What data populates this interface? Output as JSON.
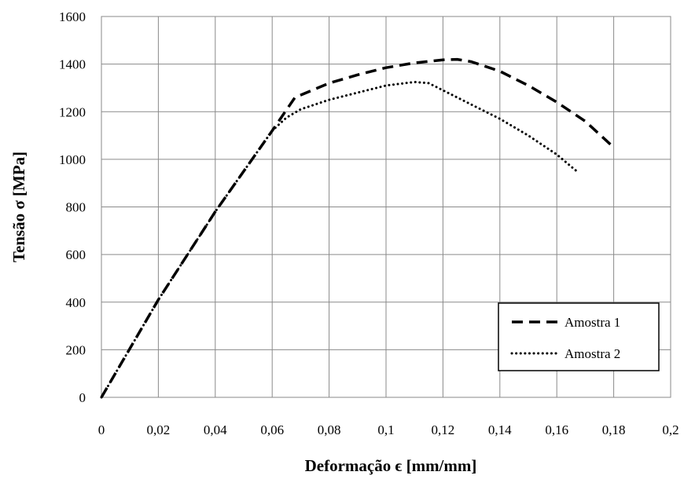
{
  "chart_data": {
    "type": "line",
    "title": "",
    "xlabel": "Deformação ϵ [mm/mm]",
    "ylabel": "Tensão σ [MPa]",
    "xlim": [
      0,
      0.2
    ],
    "ylim": [
      0,
      1600
    ],
    "x_ticks": [
      "0",
      "0,02",
      "0,04",
      "0,06",
      "0,08",
      "0,1",
      "0,12",
      "0,14",
      "0,16",
      "0,18",
      "0,2"
    ],
    "y_ticks": [
      "0",
      "200",
      "400",
      "600",
      "800",
      "1000",
      "1200",
      "1400",
      "1600"
    ],
    "grid": true,
    "legend_position": "bottom-right",
    "series": [
      {
        "name": "Amostra 1",
        "style": "dashed",
        "x": [
          0,
          0.02,
          0.04,
          0.06,
          0.068,
          0.08,
          0.09,
          0.1,
          0.11,
          0.12,
          0.125,
          0.13,
          0.14,
          0.15,
          0.16,
          0.17,
          0.18
        ],
        "y": [
          0,
          410,
          780,
          1120,
          1260,
          1320,
          1355,
          1385,
          1405,
          1418,
          1420,
          1410,
          1370,
          1310,
          1240,
          1160,
          1050
        ]
      },
      {
        "name": "Amostra 2",
        "style": "dotted",
        "x": [
          0,
          0.02,
          0.04,
          0.06,
          0.065,
          0.07,
          0.08,
          0.09,
          0.1,
          0.11,
          0.115,
          0.12,
          0.13,
          0.14,
          0.15,
          0.16,
          0.167
        ],
        "y": [
          0,
          410,
          780,
          1120,
          1175,
          1210,
          1250,
          1280,
          1310,
          1325,
          1320,
          1290,
          1230,
          1170,
          1100,
          1020,
          950
        ]
      }
    ]
  }
}
